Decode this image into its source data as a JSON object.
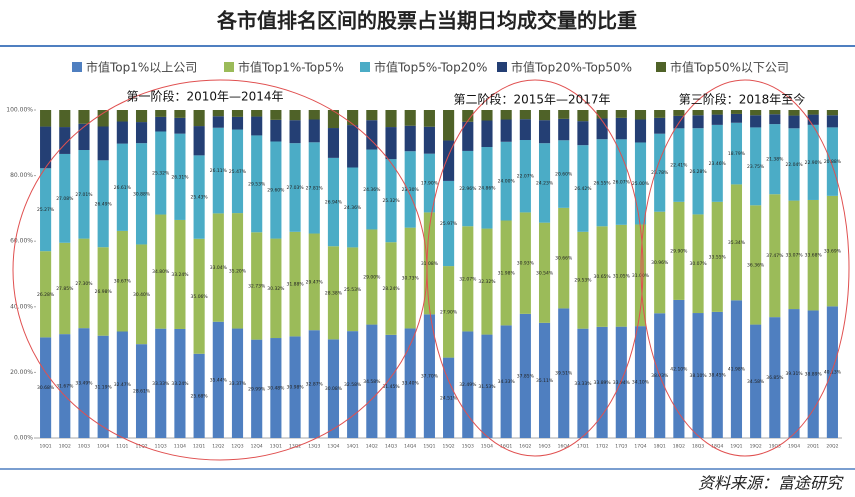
{
  "chart_data": {
    "type": "stacked_bar",
    "title": "各市值排名区间的股票占当期日均成交量的比重",
    "source": "资料来源：富途研究",
    "annotations": [
      "第一阶段：2010年—2014年",
      "第二阶段：2015年—2017年",
      "第三阶段：2018年至今"
    ],
    "categories": [
      "10Q1",
      "10Q2",
      "10Q3",
      "10Q4",
      "11Q1",
      "11Q2",
      "11Q3",
      "11Q4",
      "12Q1",
      "12Q2",
      "12Q3",
      "12Q4",
      "13Q1",
      "13Q2",
      "13Q3",
      "13Q4",
      "14Q1",
      "14Q2",
      "14Q3",
      "14Q4",
      "15Q1",
      "15Q2",
      "15Q3",
      "15Q4",
      "16Q1",
      "16Q2",
      "16Q3",
      "16Q4",
      "17Q1",
      "17Q2",
      "17Q3",
      "17Q4",
      "18Q1",
      "18Q2",
      "18Q3",
      "18Q4",
      "19Q1",
      "19Q2",
      "19Q3",
      "19Q4",
      "20Q1",
      "20Q2"
    ],
    "ylim": [
      0,
      100
    ],
    "yticks": [
      {
        "value": 0,
        "label": "0.00%"
      },
      {
        "value": 20,
        "label": "20.00%"
      },
      {
        "value": 40,
        "label": "40.00%"
      },
      {
        "value": 60,
        "label": "60.00%"
      },
      {
        "value": 80,
        "label": "80.00%"
      },
      {
        "value": 100,
        "label": "100.00%"
      }
    ],
    "series": [
      {
        "name": "市值Top1%以上公司",
        "color": "#4f7fc0",
        "values": [
          30.68,
          31.67,
          33.49,
          31.19,
          32.47,
          28.61,
          33.33,
          33.24,
          25.68,
          35.44,
          33.37,
          29.99,
          30.48,
          30.98,
          32.87,
          30.08,
          32.58,
          34.58,
          31.45,
          33.4,
          37.7,
          24.51,
          32.49,
          31.53,
          34.33,
          37.85,
          35.11,
          39.51,
          33.33,
          33.89,
          33.94,
          34.1,
          38.03,
          42.1,
          38.1,
          38.45,
          41.98,
          34.58,
          36.85,
          39.31,
          38.89,
          40.13
        ],
        "value_labels": [
          "30.68%",
          "31.67%",
          "33.49%",
          "31.19%",
          "32.47%",
          "28.61%",
          "33.33%",
          "33.24%",
          "25.68%",
          "35.44%",
          "33.37%",
          "29.99%",
          "30.48%",
          "30.98%",
          "32.87%",
          "30.08%",
          "32.58%",
          "34.58%",
          "31.45%",
          "33.40%",
          "37.70%",
          "24.51%",
          "32.49%",
          "31.53%",
          "34.33%",
          "37.85%",
          "35.11%",
          "39.51%",
          "33.33%",
          "33.89%",
          "33.94%",
          "34.10%",
          "38.03%",
          "42.10%",
          "38.10%",
          "38.45%",
          "41.98%",
          "34.58%",
          "36.85%",
          "39.31%",
          "38.89%",
          "40.13%"
        ]
      },
      {
        "name": "市值Top1%-Top5%",
        "color": "#9bbb59",
        "values": [
          26.28,
          27.85,
          27.3,
          26.98,
          30.67,
          30.4,
          34.8,
          33.24,
          35.06,
          33.04,
          35.2,
          32.73,
          30.32,
          31.88,
          29.47,
          28.38,
          25.53,
          29.0,
          28.24,
          30.73,
          31.08,
          27.9,
          32.07,
          32.32,
          31.98,
          30.93,
          30.54,
          30.66,
          29.53,
          30.65,
          31.05,
          31.0,
          30.96,
          29.9,
          30.07,
          33.55,
          35.34,
          36.36,
          37.47,
          33.07,
          33.68,
          33.69
        ],
        "value_labels": [
          "26.28%",
          "27.85%",
          "27.30%",
          "26.98%",
          "30.67%",
          "30.40%",
          "34.80%",
          "33.24%",
          "35.06%",
          "33.04%",
          "35.20%",
          "32.73%",
          "30.32%",
          "31.88%",
          "29.47%",
          "28.38%",
          "25.53%",
          "29.00%",
          "28.24%",
          "30.73%",
          "31.08%",
          "27.90%",
          "32.07%",
          "32.32%",
          "31.98%",
          "30.93%",
          "30.54%",
          "30.66%",
          "29.53%",
          "30.65%",
          "31.05%",
          "31.00%",
          "30.96%",
          "29.90%",
          "30.07%",
          "33.55%",
          "35.34%",
          "36.36%",
          "37.47%",
          "33.07%",
          "33.68%",
          "33.69%"
        ]
      },
      {
        "name": "市值Top5%-Top20%",
        "color": "#4bacc6",
        "values": [
          25.27,
          27.08,
          27.01,
          26.49,
          26.61,
          30.88,
          25.32,
          26.31,
          25.43,
          26.11,
          25.47,
          29.53,
          29.6,
          27.03,
          27.81,
          26.94,
          24.36,
          24.36,
          25.32,
          23.3,
          17.9,
          25.97,
          22.96,
          24.86,
          24.0,
          22.07,
          24.23,
          20.6,
          26.42,
          26.55,
          26.07,
          25.0,
          23.78,
          22.41,
          26.28,
          23.46,
          18.79,
          23.75,
          21.38,
          22.04,
          22.9,
          20.88
        ],
        "value_labels": [
          "25.27%",
          "27.08%",
          "27.01%",
          "26.49%",
          "26.61%",
          "30.88%",
          "25.32%",
          "26.31%",
          "25.43%",
          "26.11%",
          "25.47%",
          "29.53%",
          "29.60%",
          "27.03%",
          "27.81%",
          "26.94%",
          "24.36%",
          "24.36%",
          "25.32%",
          "23.30%",
          "17.90%",
          "25.97%",
          "22.96%",
          "24.86%",
          "24.00%",
          "22.07%",
          "24.23%",
          "20.60%",
          "26.42%",
          "26.55%",
          "26.07%",
          "25.00%",
          "23.78%",
          "22.41%",
          "26.28%",
          "23.46%",
          "18.79%",
          "23.75%",
          "21.38%",
          "22.04%",
          "22.90%",
          "20.88%"
        ]
      },
      {
        "name": "市值Top20%-Top50%",
        "color": "#243f74",
        "values": [
          12.72,
          8.2,
          8.01,
          10.31,
          6.74,
          6.43,
          4.45,
          4.81,
          8.93,
          3.51,
          3.86,
          5.75,
          6.6,
          7.01,
          6.95,
          9.1,
          12.93,
          8.96,
          9.79,
          7.77,
          8.22,
          12.33,
          8.88,
          8.09,
          6.79,
          6.35,
          7.02,
          6.53,
          7.32,
          6.31,
          6.54,
          7.0,
          4.83,
          3.79,
          3.95,
          3.14,
          2.69,
          3.71,
          3.0,
          3.88,
          3.13,
          3.7
        ]
      },
      {
        "name": "市值Top50%以下公司",
        "color": "#4f6228",
        "values": [
          5.05,
          5.2,
          4.19,
          5.03,
          3.51,
          3.68,
          2.1,
          2.4,
          4.9,
          1.9,
          2.1,
          2.0,
          3.0,
          3.1,
          2.9,
          5.5,
          4.6,
          3.1,
          5.2,
          4.8,
          5.1,
          9.29,
          3.6,
          3.2,
          2.9,
          2.8,
          3.1,
          2.7,
          3.4,
          2.6,
          2.4,
          2.9,
          2.4,
          1.8,
          1.6,
          1.4,
          1.2,
          1.6,
          1.3,
          1.7,
          1.4,
          1.6
        ]
      }
    ]
  }
}
